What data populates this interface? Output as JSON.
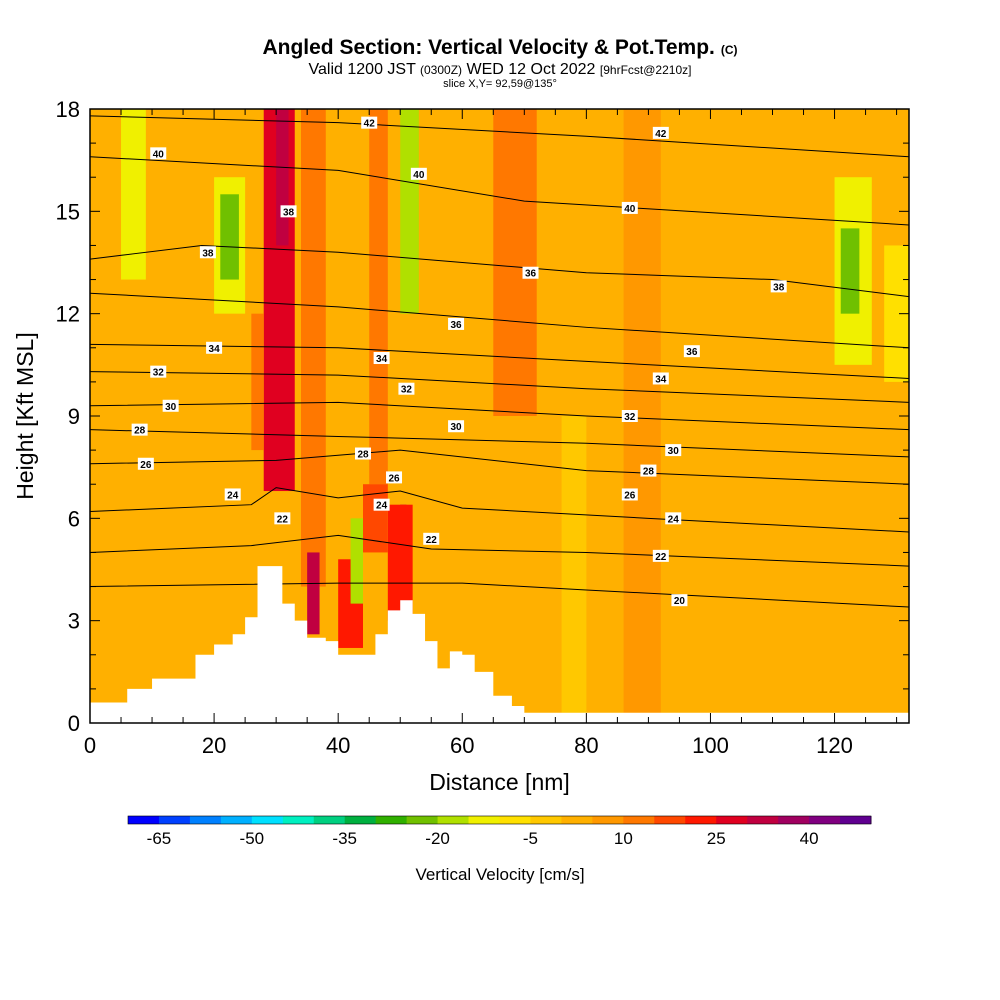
{
  "header": {
    "title": "Angled Section: Vertical Velocity & Pot.Temp.",
    "copyright": "(C)",
    "valid_main": "Valid 1200 JST",
    "valid_z": "(0300Z)",
    "valid_date": "WED 12 Oct 2022",
    "valid_fcst": "[9hrFcst@2210z]",
    "slice": "slice X,Y= 92,59@135°"
  },
  "chart_data": {
    "type": "heatmap",
    "title": "Angled Section: Vertical Velocity & Pot.Temp.",
    "xlabel": "Distance [nm]",
    "ylabel": "Height [Kft MSL]",
    "xlim": [
      0,
      132
    ],
    "ylim": [
      0,
      18
    ],
    "x_ticks": [
      0,
      20,
      40,
      60,
      80,
      100,
      120
    ],
    "y_ticks": [
      0,
      3,
      6,
      9,
      12,
      15,
      18
    ],
    "colorbar": {
      "label": "Vertical Velocity [cm/s]",
      "tick_values": [
        -65,
        -50,
        -35,
        -20,
        -5,
        10,
        25,
        40
      ],
      "min": -70,
      "max": 50,
      "colors": [
        "#0000ff",
        "#0040ff",
        "#0080ff",
        "#00b0ff",
        "#00e0ff",
        "#00f0c0",
        "#00d080",
        "#00b040",
        "#30b000",
        "#70c000",
        "#b0e000",
        "#f0f000",
        "#ffe000",
        "#ffc800",
        "#ffb000",
        "#ff9800",
        "#ff7800",
        "#ff4800",
        "#ff1800",
        "#e00020",
        "#c00040",
        "#a00060",
        "#800080",
        "#600090"
      ]
    },
    "background_level": 2,
    "velocity_cells": [
      {
        "x": [
          28,
          33
        ],
        "y": [
          6.8,
          18
        ],
        "value": 25
      },
      {
        "x": [
          30,
          32
        ],
        "y": [
          14,
          18
        ],
        "value": 30
      },
      {
        "x": [
          34,
          38
        ],
        "y": [
          4,
          18
        ],
        "value": 14
      },
      {
        "x": [
          35,
          37
        ],
        "y": [
          2.6,
          5
        ],
        "value": 30
      },
      {
        "x": [
          45,
          48
        ],
        "y": [
          7,
          18
        ],
        "value": 12
      },
      {
        "x": [
          50,
          51
        ],
        "y": [
          3.5,
          6.4
        ],
        "value": 35
      },
      {
        "x": [
          48,
          52
        ],
        "y": [
          3,
          6.4
        ],
        "value": 22
      },
      {
        "x": [
          65,
          72
        ],
        "y": [
          9,
          18
        ],
        "value": 10
      },
      {
        "x": [
          26,
          28
        ],
        "y": [
          8,
          12
        ],
        "value": 12
      },
      {
        "x": [
          44,
          48
        ],
        "y": [
          5,
          7
        ],
        "value": 15
      },
      {
        "x": [
          40,
          44
        ],
        "y": [
          2.2,
          4.8
        ],
        "value": 22
      },
      {
        "x": [
          5,
          9
        ],
        "y": [
          13,
          18
        ],
        "value": -12
      },
      {
        "x": [
          20,
          25
        ],
        "y": [
          12,
          16
        ],
        "value": -15
      },
      {
        "x": [
          21,
          24
        ],
        "y": [
          13,
          15.5
        ],
        "value": -22
      },
      {
        "x": [
          50,
          53
        ],
        "y": [
          12,
          18
        ],
        "value": -16
      },
      {
        "x": [
          42,
          44
        ],
        "y": [
          3.5,
          6
        ],
        "value": -16
      },
      {
        "x": [
          120,
          126
        ],
        "y": [
          10.5,
          16
        ],
        "value": -12
      },
      {
        "x": [
          121,
          124
        ],
        "y": [
          12,
          14.5
        ],
        "value": -24
      },
      {
        "x": [
          128,
          132
        ],
        "y": [
          10,
          14
        ],
        "value": -6
      },
      {
        "x": [
          86,
          92
        ],
        "y": [
          0.3,
          18
        ],
        "value": 6
      },
      {
        "x": [
          76,
          80
        ],
        "y": [
          0.3,
          9
        ],
        "value": -5
      }
    ],
    "terrain": [
      [
        0,
        0.6
      ],
      [
        6,
        1
      ],
      [
        10,
        1.3
      ],
      [
        14,
        1.3
      ],
      [
        17,
        2
      ],
      [
        20,
        2.3
      ],
      [
        23,
        2.6
      ],
      [
        25,
        3.1
      ],
      [
        27,
        4.6
      ],
      [
        30,
        4.6
      ],
      [
        31,
        3.5
      ],
      [
        33,
        3
      ],
      [
        35,
        2.5
      ],
      [
        38,
        2.4
      ],
      [
        40,
        2
      ],
      [
        44,
        2
      ],
      [
        46,
        2.6
      ],
      [
        48,
        3.3
      ],
      [
        50,
        3.6
      ],
      [
        52,
        3.2
      ],
      [
        54,
        2.4
      ],
      [
        56,
        1.6
      ],
      [
        58,
        2.1
      ],
      [
        60,
        2
      ],
      [
        62,
        1.5
      ],
      [
        65,
        0.8
      ],
      [
        68,
        0.5
      ],
      [
        70,
        0.3
      ],
      [
        132,
        0.3
      ]
    ],
    "theta_contours": [
      {
        "level": 20,
        "pts": [
          [
            0,
            4.0
          ],
          [
            40,
            4.1
          ],
          [
            60,
            4.1
          ],
          [
            80,
            3.9
          ],
          [
            132,
            3.4
          ]
        ]
      },
      {
        "level": 22,
        "pts": [
          [
            0,
            5.0
          ],
          [
            26,
            5.2
          ],
          [
            40,
            5.5
          ],
          [
            55,
            5.1
          ],
          [
            80,
            5.0
          ],
          [
            132,
            4.6
          ]
        ]
      },
      {
        "level": 24,
        "pts": [
          [
            0,
            6.2
          ],
          [
            26,
            6.4
          ],
          [
            30,
            6.9
          ],
          [
            40,
            6.6
          ],
          [
            50,
            6.8
          ],
          [
            60,
            6.3
          ],
          [
            90,
            6.0
          ],
          [
            132,
            5.6
          ]
        ]
      },
      {
        "level": 26,
        "pts": [
          [
            0,
            7.6
          ],
          [
            30,
            7.7
          ],
          [
            50,
            8.0
          ],
          [
            80,
            7.4
          ],
          [
            132,
            7.0
          ]
        ]
      },
      {
        "level": 28,
        "pts": [
          [
            0,
            8.6
          ],
          [
            40,
            8.4
          ],
          [
            80,
            8.2
          ],
          [
            132,
            7.8
          ]
        ]
      },
      {
        "level": 30,
        "pts": [
          [
            0,
            9.3
          ],
          [
            40,
            9.4
          ],
          [
            80,
            9.0
          ],
          [
            132,
            8.6
          ]
        ]
      },
      {
        "level": 32,
        "pts": [
          [
            0,
            10.3
          ],
          [
            40,
            10.2
          ],
          [
            80,
            9.8
          ],
          [
            132,
            9.4
          ]
        ]
      },
      {
        "level": 34,
        "pts": [
          [
            0,
            11.1
          ],
          [
            40,
            11.0
          ],
          [
            80,
            10.6
          ],
          [
            132,
            10.1
          ]
        ]
      },
      {
        "level": 36,
        "pts": [
          [
            0,
            12.6
          ],
          [
            40,
            12.2
          ],
          [
            80,
            11.6
          ],
          [
            132,
            11.0
          ]
        ]
      },
      {
        "level": 38,
        "pts": [
          [
            0,
            13.6
          ],
          [
            18,
            14.0
          ],
          [
            40,
            13.8
          ],
          [
            80,
            13.2
          ],
          [
            110,
            13.0
          ],
          [
            132,
            12.5
          ]
        ]
      },
      {
        "level": 40,
        "pts": [
          [
            0,
            16.6
          ],
          [
            40,
            16.2
          ],
          [
            70,
            15.3
          ],
          [
            132,
            14.6
          ]
        ]
      },
      {
        "level": 42,
        "pts": [
          [
            0,
            17.8
          ],
          [
            40,
            17.6
          ],
          [
            80,
            17.2
          ],
          [
            132,
            16.6
          ]
        ]
      }
    ],
    "contour_labels": [
      {
        "text": "42",
        "x": 45,
        "y": 17.6
      },
      {
        "text": "42",
        "x": 92,
        "y": 17.3
      },
      {
        "text": "40",
        "x": 11,
        "y": 16.7
      },
      {
        "text": "40",
        "x": 53,
        "y": 16.1
      },
      {
        "text": "40",
        "x": 87,
        "y": 15.1
      },
      {
        "text": "38",
        "x": 32,
        "y": 15.0
      },
      {
        "text": "38",
        "x": 19,
        "y": 13.8
      },
      {
        "text": "36",
        "x": 71,
        "y": 13.2
      },
      {
        "text": "38",
        "x": 111,
        "y": 12.8
      },
      {
        "text": "36",
        "x": 59,
        "y": 11.7
      },
      {
        "text": "36",
        "x": 97,
        "y": 10.9
      },
      {
        "text": "34",
        "x": 20,
        "y": 11.0
      },
      {
        "text": "34",
        "x": 47,
        "y": 10.7
      },
      {
        "text": "34",
        "x": 92,
        "y": 10.1
      },
      {
        "text": "32",
        "x": 11,
        "y": 10.3
      },
      {
        "text": "32",
        "x": 51,
        "y": 9.8
      },
      {
        "text": "32",
        "x": 87,
        "y": 9.0
      },
      {
        "text": "30",
        "x": 13,
        "y": 9.3
      },
      {
        "text": "30",
        "x": 59,
        "y": 8.7
      },
      {
        "text": "30",
        "x": 94,
        "y": 8.0
      },
      {
        "text": "28",
        "x": 8,
        "y": 8.6
      },
      {
        "text": "28",
        "x": 44,
        "y": 7.9
      },
      {
        "text": "28",
        "x": 90,
        "y": 7.4
      },
      {
        "text": "26",
        "x": 9,
        "y": 7.6
      },
      {
        "text": "26",
        "x": 49,
        "y": 7.2
      },
      {
        "text": "26",
        "x": 87,
        "y": 6.7
      },
      {
        "text": "24",
        "x": 23,
        "y": 6.7
      },
      {
        "text": "24",
        "x": 47,
        "y": 6.4
      },
      {
        "text": "24",
        "x": 94,
        "y": 6.0
      },
      {
        "text": "22",
        "x": 31,
        "y": 6.0
      },
      {
        "text": "22",
        "x": 55,
        "y": 5.4
      },
      {
        "text": "22",
        "x": 92,
        "y": 4.9
      },
      {
        "text": "20",
        "x": 95,
        "y": 3.6
      }
    ]
  }
}
